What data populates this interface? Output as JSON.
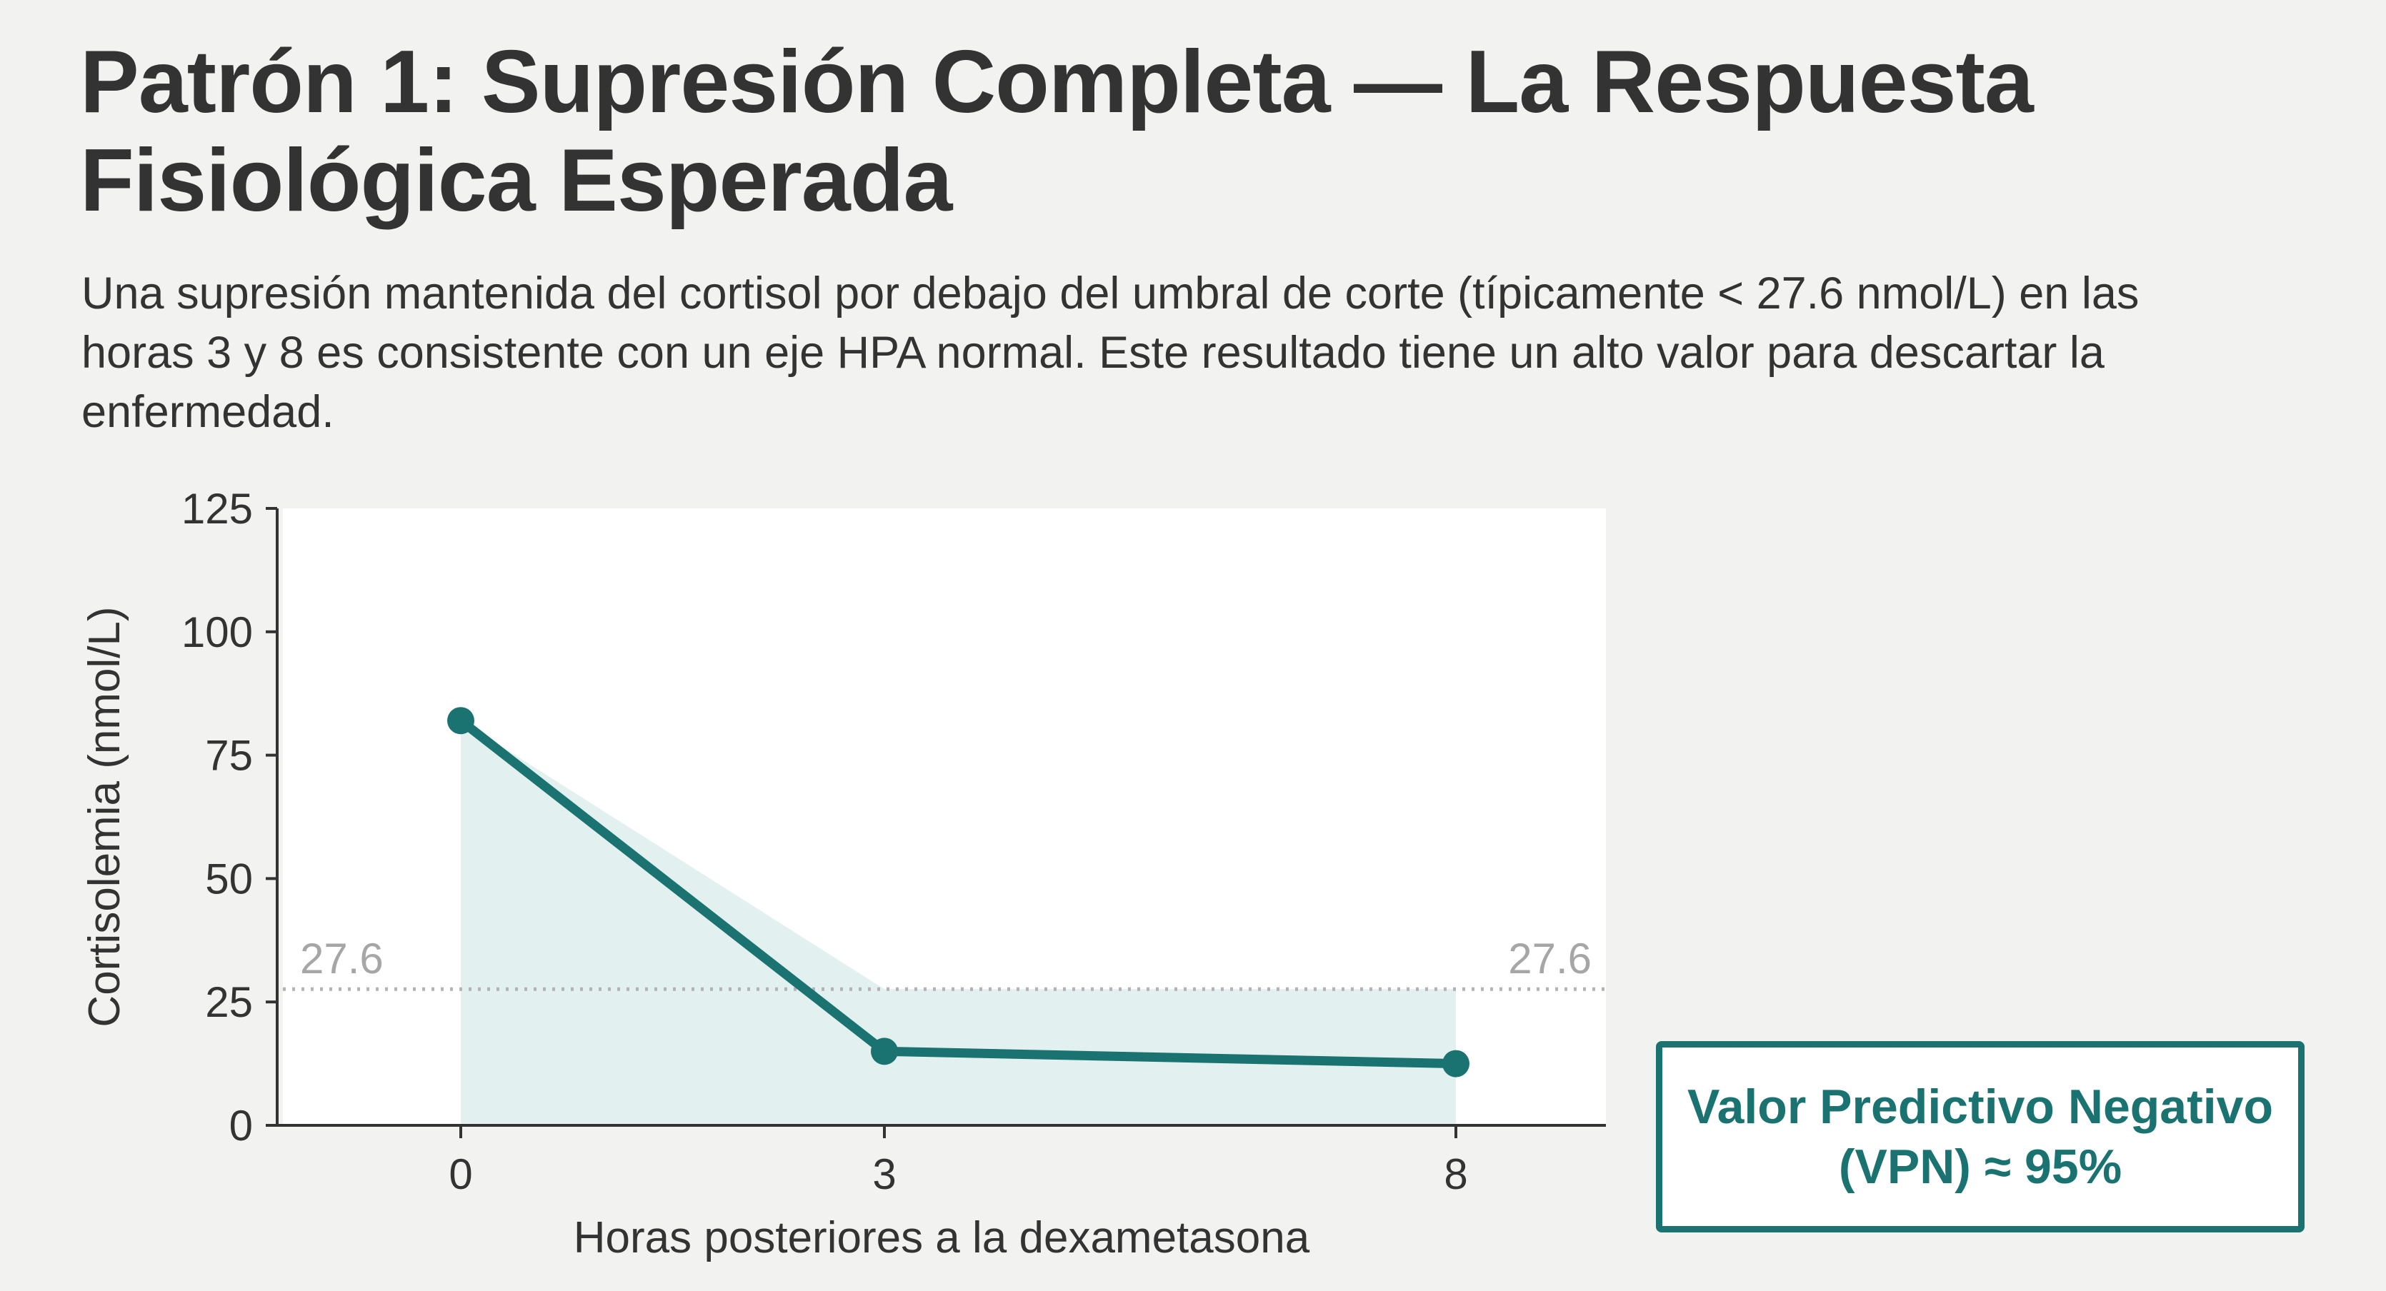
{
  "page": {
    "title": "Patrón 1: Supresión Completa — La Respuesta Fisiológica Esperada",
    "description": "Una supresión mantenida del cortisol por debajo del umbral de corte (típicamente < 27.6 nmol/L) en las horas 3 y 8 es consistente con un eje HPA normal. Este resultado tiene un alto valor para descartar la enfermedad."
  },
  "callout": {
    "text": "Valor Predictivo Negativo (VPN) ≈ 95%"
  },
  "colors": {
    "accent": "#1a7370",
    "area_fill": "#e2f1f0",
    "threshold": "#b3b3b3",
    "background": "#f2f2f0",
    "plot_background": "#ffffff"
  },
  "chart_data": {
    "type": "line",
    "x": [
      0,
      3,
      8
    ],
    "x_tick_labels": [
      "0",
      "3",
      "8"
    ],
    "y": [
      82,
      15,
      12.5
    ],
    "xlabel": "Horas posteriores a la dexametasona",
    "ylabel": "Cortisolemia (nmol/L)",
    "ylim": [
      0,
      125
    ],
    "y_ticks": [
      0,
      25,
      50,
      75,
      100,
      125
    ],
    "threshold": {
      "value": 27.6,
      "label": "27.6"
    },
    "area_fill": true,
    "grid": false
  }
}
